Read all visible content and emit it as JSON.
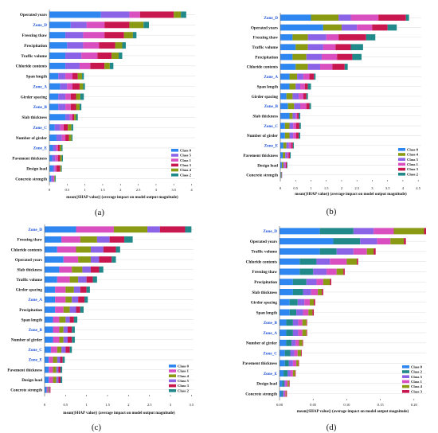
{
  "colors": {
    "Class 0": "#2e86f0",
    "Class 5": "#8a63e6",
    "Class 1": "#d94fc0",
    "Class 3": "#c8174f",
    "Class 4": "#8a9a12",
    "Class 2": "#21898a"
  },
  "chart_data": [
    {
      "type": "bar",
      "orientation": "horizontal-stacked",
      "panel": "(a)",
      "xlabel": "mean(|SHAP value|) (average impact on model output magnitude)",
      "xticks": [
        0.0,
        0.5,
        1.0,
        1.5,
        2.0,
        2.5,
        3.0,
        3.5,
        4.0
      ],
      "xlim": [
        0,
        4.1
      ],
      "legend": [
        "Class 0",
        "Class 5",
        "Class 1",
        "Class 3",
        "Class 4",
        "Class 2"
      ],
      "legend_position": "bottom-right",
      "categories": [
        "Operated years",
        "Zone_D",
        "Freezing thaw",
        "Precipitation",
        "Traffic volume",
        "Chloride contents",
        "Span length",
        "Zone_A",
        "Girder spacing",
        "Zone_B",
        "Slab thickness",
        "Zone_C",
        "Number of girder",
        "Zone_E",
        "Pavement thickness",
        "Design load",
        "Concrete strength"
      ],
      "zone_labels": [
        "Zone_D",
        "Zone_A",
        "Zone_B",
        "Zone_C",
        "Zone_E"
      ],
      "series": [
        {
          "name": "Class 0",
          "values": [
            1.45,
            0.6,
            0.45,
            0.5,
            0.45,
            0.45,
            0.25,
            0.3,
            0.25,
            0.25,
            0.45,
            0.15,
            0.2,
            0.1,
            0.08,
            0.1,
            0.05
          ]
        },
        {
          "name": "Class 5",
          "values": [
            0.8,
            0.45,
            0.5,
            0.45,
            0.45,
            0.4,
            0.2,
            0.2,
            0.2,
            0.2,
            0.12,
            0.15,
            0.15,
            0.08,
            0.08,
            0.05,
            0.05
          ]
        },
        {
          "name": "Class 1",
          "values": [
            0.3,
            0.5,
            0.6,
            0.45,
            0.45,
            0.3,
            0.2,
            0.15,
            0.15,
            0.15,
            0.08,
            0.1,
            0.1,
            0.06,
            0.08,
            0.05,
            0.04
          ]
        },
        {
          "name": "Class 3",
          "values": [
            0.95,
            0.7,
            0.55,
            0.45,
            0.4,
            0.4,
            0.15,
            0.2,
            0.15,
            0.15,
            0.05,
            0.12,
            0.1,
            0.05,
            0.06,
            0.1,
            0.0
          ]
        },
        {
          "name": "Class 4",
          "values": [
            0.2,
            0.4,
            0.25,
            0.2,
            0.2,
            0.15,
            0.12,
            0.1,
            0.12,
            0.1,
            0.05,
            0.1,
            0.07,
            0.05,
            0.05,
            0.03,
            0.02
          ]
        },
        {
          "name": "Class 2",
          "values": [
            0.15,
            0.15,
            0.1,
            0.1,
            0.1,
            0.1,
            0.05,
            0.05,
            0.1,
            0.05,
            0.05,
            0.05,
            0.03,
            0.03,
            0.03,
            0.02,
            0.02
          ]
        }
      ]
    },
    {
      "type": "bar",
      "orientation": "horizontal-stacked",
      "panel": "(b)",
      "xlabel": "mean(|SHAP value|) (average impact on model output magnitude)",
      "xticks": [
        0.0,
        0.5,
        1.0,
        1.5,
        2.0,
        2.5,
        3.0,
        3.5,
        4.0,
        4.5
      ],
      "xlim": [
        0,
        4.6
      ],
      "legend": [
        "Class 0",
        "Class 4",
        "Class 5",
        "Class 1",
        "Class 3",
        "Class 2"
      ],
      "legend_position": "bottom-right",
      "categories": [
        "Zone_D",
        "Operated years",
        "Freezing thaw",
        "Traffic volume",
        "Precipitation",
        "Chloride contents",
        "Zone_A",
        "Span length",
        "Girder spacing",
        "Zone_B",
        "Slab thickness",
        "Zone_C",
        "Number of girder",
        "Zone_E",
        "Pavement thickness",
        "Design load",
        "Concrete strength"
      ],
      "zone_labels": [
        "Zone_D",
        "Zone_A",
        "Zone_B",
        "Zone_C",
        "Zone_E"
      ],
      "series": [
        {
          "name": "Class 0",
          "values": [
            1.0,
            1.4,
            0.4,
            0.5,
            0.4,
            0.5,
            0.3,
            0.3,
            0.2,
            0.25,
            0.3,
            0.15,
            0.15,
            0.1,
            0.08,
            0.05,
            0.02
          ]
        },
        {
          "name": "Class 4",
          "values": [
            0.9,
            0.6,
            0.5,
            0.4,
            0.45,
            0.4,
            0.25,
            0.2,
            0.2,
            0.2,
            0.1,
            0.15,
            0.15,
            0.1,
            0.08,
            0.05,
            0.02
          ]
        },
        {
          "name": "Class 5",
          "values": [
            0.4,
            0.5,
            0.6,
            0.5,
            0.5,
            0.4,
            0.2,
            0.15,
            0.2,
            0.2,
            0.1,
            0.12,
            0.12,
            0.08,
            0.06,
            0.04,
            0.02
          ]
        },
        {
          "name": "Class 1",
          "values": [
            0.9,
            0.5,
            0.4,
            0.4,
            0.5,
            0.4,
            0.2,
            0.15,
            0.15,
            0.2,
            0.05,
            0.1,
            0.1,
            0.08,
            0.05,
            0.04,
            0.0
          ]
        },
        {
          "name": "Class 3",
          "values": [
            0.9,
            0.5,
            0.9,
            0.5,
            0.5,
            0.4,
            0.15,
            0.1,
            0.1,
            0.1,
            0.05,
            0.1,
            0.08,
            0.05,
            0.04,
            0.03,
            0.0
          ]
        },
        {
          "name": "Class 2",
          "values": [
            0.1,
            0.3,
            0.3,
            0.4,
            0.3,
            0.1,
            0.05,
            0.1,
            0.05,
            0.05,
            0.05,
            0.05,
            0.05,
            0.03,
            0.03,
            0.02,
            0.0
          ]
        }
      ]
    },
    {
      "type": "bar",
      "orientation": "horizontal-stacked",
      "panel": "(c)",
      "xlabel": "mean(|SHAP value|) (average impact on model output magnitude)",
      "xticks": [
        0.0,
        0.5,
        1.0,
        1.5,
        2.0,
        2.5,
        3.0,
        3.5
      ],
      "xlim": [
        0,
        3.55
      ],
      "legend": [
        "Class 0",
        "Class 1",
        "Class 4",
        "Class 5",
        "Class 3",
        "Class 2"
      ],
      "legend_position": "bottom-right",
      "categories": [
        "Zone_D",
        "Freezing thaw",
        "Chloride contents",
        "Operated years",
        "Slab thickness",
        "Traffic volume",
        "Girder spacing",
        "Zone_A",
        "Precipitation",
        "Span length",
        "Zone_B",
        "Number of girder",
        "Zone_C",
        "Zone_E",
        "Pavement thickness",
        "Design load",
        "Concrete strength"
      ],
      "zone_labels": [
        "Zone_D",
        "Zone_A",
        "Zone_B",
        "Zone_C",
        "Zone_E"
      ],
      "series": [
        {
          "name": "Class 0",
          "values": [
            0.75,
            0.4,
            0.3,
            0.45,
            0.35,
            0.3,
            0.25,
            0.25,
            0.25,
            0.2,
            0.2,
            0.2,
            0.15,
            0.1,
            0.1,
            0.1,
            0.05
          ]
        },
        {
          "name": "Class 1",
          "values": [
            0.9,
            0.45,
            0.45,
            0.35,
            0.3,
            0.3,
            0.25,
            0.25,
            0.2,
            0.15,
            0.15,
            0.15,
            0.15,
            0.1,
            0.1,
            0.1,
            0.03
          ]
        },
        {
          "name": "Class 4",
          "values": [
            0.8,
            0.4,
            0.35,
            0.3,
            0.25,
            0.2,
            0.2,
            0.15,
            0.15,
            0.15,
            0.1,
            0.1,
            0.1,
            0.1,
            0.08,
            0.08,
            0.02
          ]
        },
        {
          "name": "Class 5",
          "values": [
            0.3,
            0.3,
            0.3,
            0.2,
            0.2,
            0.2,
            0.15,
            0.15,
            0.15,
            0.1,
            0.1,
            0.1,
            0.1,
            0.07,
            0.05,
            0.05,
            0.02
          ]
        },
        {
          "name": "Class 3",
          "values": [
            0.6,
            0.35,
            0.3,
            0.3,
            0.2,
            0.15,
            0.15,
            0.15,
            0.1,
            0.1,
            0.1,
            0.1,
            0.1,
            0.06,
            0.05,
            0.05,
            0.02
          ]
        },
        {
          "name": "Class 2",
          "values": [
            0.15,
            0.2,
            0.1,
            0.1,
            0.1,
            0.1,
            0.08,
            0.08,
            0.08,
            0.08,
            0.07,
            0.07,
            0.05,
            0.05,
            0.04,
            0.04,
            0.0
          ]
        }
      ]
    },
    {
      "type": "bar",
      "orientation": "horizontal-stacked",
      "panel": "(d)",
      "xlabel": "mean(|SHAP value|) (average impact on model output magnitude)",
      "xticks": [
        0.0,
        0.05,
        0.1,
        0.15,
        0.2
      ],
      "xticklabels": [
        "0.00",
        "0.05",
        "0.10",
        "0.15",
        "0.20"
      ],
      "xlim": [
        0,
        0.218
      ],
      "legend": [
        "Class 0",
        "Class 2",
        "Class 5",
        "Class 1",
        "Class 4",
        "Class 3"
      ],
      "legend_position": "bottom-right",
      "categories": [
        "Zone_D",
        "Operated years",
        "Traffic volume",
        "Chloride contents",
        "Freezing thaw",
        "Precipitation",
        "Slab thickness",
        "Girder spacing",
        "Span length",
        "Zone_B",
        "Zone_A",
        "Number of girder",
        "Zone_C",
        "Pavement thickness",
        "Zone_E",
        "Design load",
        "Concrete strength"
      ],
      "zone_labels": [
        "Zone_D",
        "Zone_A",
        "Zone_B",
        "Zone_C",
        "Zone_E"
      ],
      "series": [
        {
          "name": "Class 0",
          "values": [
            0.06,
            0.08,
            0.06,
            0.03,
            0.03,
            0.02,
            0.02,
            0.015,
            0.015,
            0.01,
            0.01,
            0.01,
            0.008,
            0.008,
            0.006,
            0.004,
            0.003
          ]
        },
        {
          "name": "Class 2",
          "values": [
            0.05,
            0.04,
            0.025,
            0.025,
            0.02,
            0.02,
            0.015,
            0.012,
            0.01,
            0.01,
            0.01,
            0.008,
            0.008,
            0.006,
            0.006,
            0.003,
            0.002
          ]
        },
        {
          "name": "Class 5",
          "values": [
            0.03,
            0.025,
            0.025,
            0.02,
            0.02,
            0.015,
            0.012,
            0.01,
            0.01,
            0.008,
            0.008,
            0.006,
            0.006,
            0.006,
            0.004,
            0.002,
            0.002
          ]
        },
        {
          "name": "Class 1",
          "values": [
            0.03,
            0.02,
            0.02,
            0.025,
            0.015,
            0.01,
            0.01,
            0.008,
            0.008,
            0.006,
            0.006,
            0.005,
            0.005,
            0.005,
            0.004,
            0.003,
            0.002
          ]
        },
        {
          "name": "Class 4",
          "values": [
            0.045,
            0.02,
            0.01,
            0.015,
            0.01,
            0.01,
            0.006,
            0.006,
            0.006,
            0.006,
            0.006,
            0.005,
            0.005,
            0.003,
            0.003,
            0.002,
            0.001
          ]
        },
        {
          "name": "Class 3",
          "values": [
            0.003,
            0.003,
            0.003,
            0.002,
            0.002,
            0.002,
            0.002,
            0.002,
            0.002,
            0.001,
            0.001,
            0.001,
            0.001,
            0.001,
            0.001,
            0.001,
            0.001
          ]
        }
      ]
    }
  ]
}
